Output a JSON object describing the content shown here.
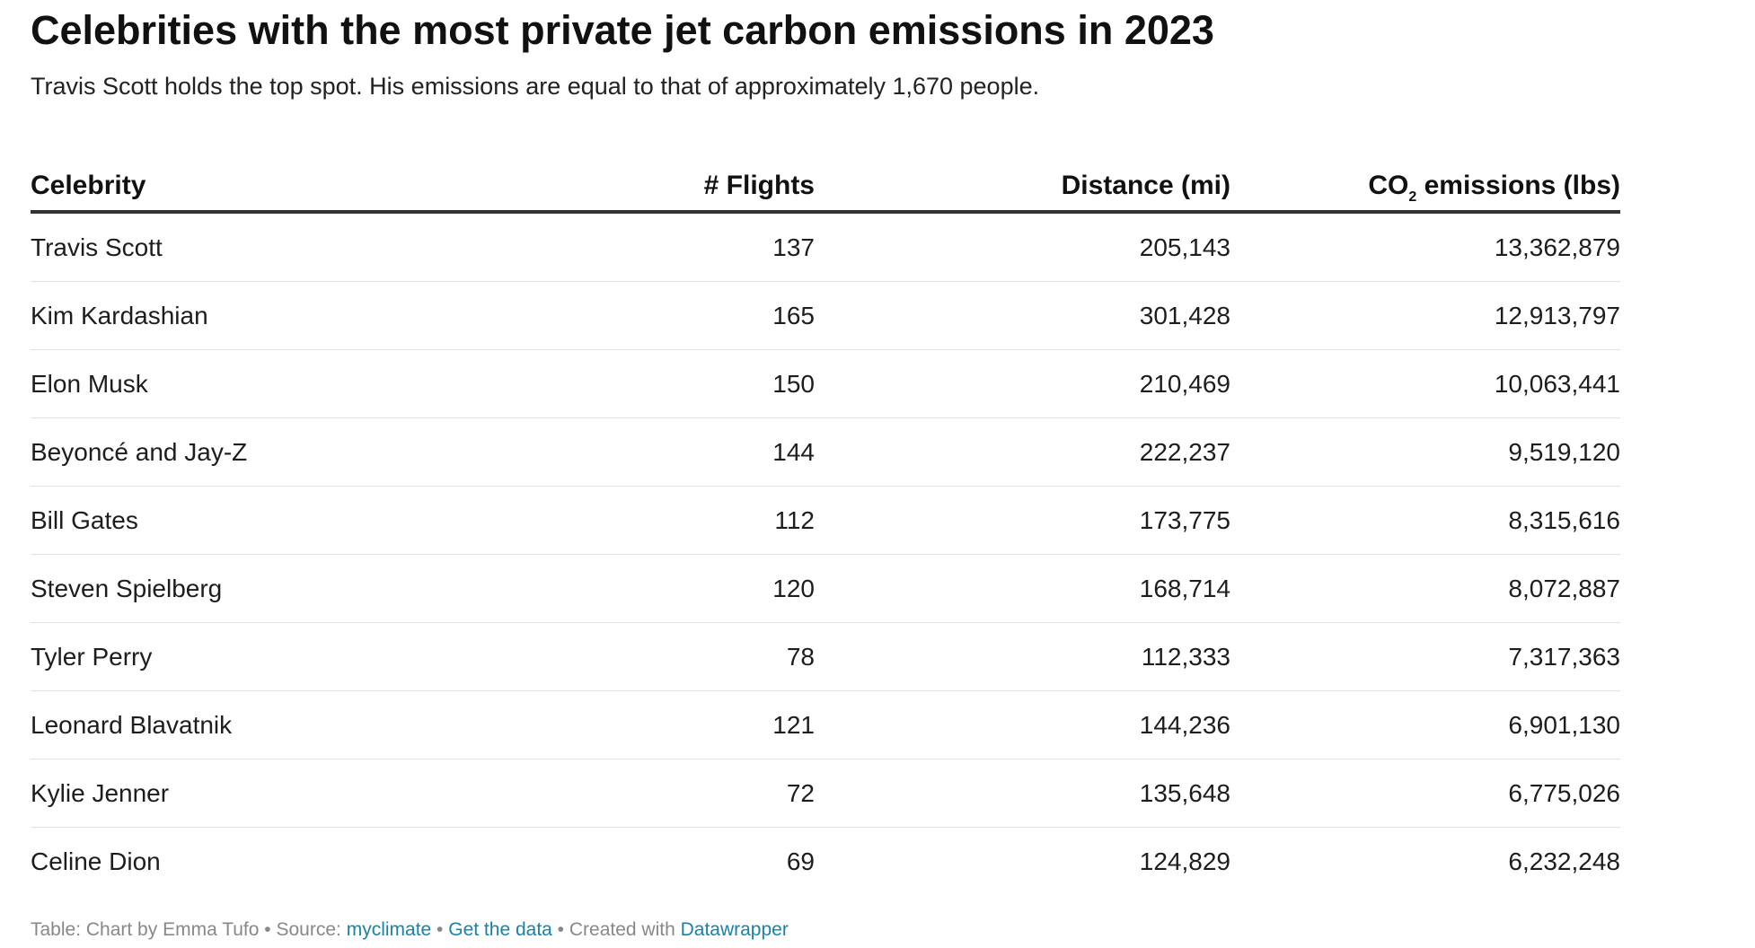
{
  "chart_data": {
    "type": "table",
    "title": "Celebrities with the most private jet carbon emissions in 2023",
    "subtitle": "Travis Scott holds the top spot. His emissions are equal to that of approximately 1,670 people.",
    "columns": [
      "Celebrity",
      "# Flights",
      "Distance (mi)",
      "CO2 emissions (lbs)"
    ],
    "header": {
      "celebrity": "Celebrity",
      "flights": "# Flights",
      "distance": "Distance (mi)",
      "emissions_prefix": "CO",
      "emissions_sub": "2",
      "emissions_suffix": " emissions (lbs)"
    },
    "rows": [
      {
        "celebrity": "Travis Scott",
        "flights": "137",
        "distance": "205,143",
        "emissions": "13,362,879"
      },
      {
        "celebrity": "Kim Kardashian",
        "flights": "165",
        "distance": "301,428",
        "emissions": "12,913,797"
      },
      {
        "celebrity": "Elon Musk",
        "flights": "150",
        "distance": "210,469",
        "emissions": "10,063,441"
      },
      {
        "celebrity": "Beyoncé and Jay-Z",
        "flights": "144",
        "distance": "222,237",
        "emissions": "9,519,120"
      },
      {
        "celebrity": "Bill Gates",
        "flights": "112",
        "distance": "173,775",
        "emissions": "8,315,616"
      },
      {
        "celebrity": "Steven Spielberg",
        "flights": "120",
        "distance": "168,714",
        "emissions": "8,072,887"
      },
      {
        "celebrity": "Tyler Perry",
        "flights": "78",
        "distance": "112,333",
        "emissions": "7,317,363"
      },
      {
        "celebrity": "Leonard Blavatnik",
        "flights": "121",
        "distance": "144,236",
        "emissions": "6,901,130"
      },
      {
        "celebrity": "Kylie Jenner",
        "flights": "72",
        "distance": "135,648",
        "emissions": "6,775,026"
      },
      {
        "celebrity": "Celine Dion",
        "flights": "69",
        "distance": "124,829",
        "emissions": "6,232,248"
      }
    ]
  },
  "footer": {
    "table_credit": "Table: Chart by Emma Tufo",
    "separator": " • ",
    "source_label": "Source: ",
    "source_link": "myclimate",
    "get_data_link": "Get the data",
    "created_with": "Created with ",
    "datawrapper_link": "Datawrapper"
  },
  "colors": {
    "text": "#1d1d1d",
    "header_rule": "#333333",
    "row_rule": "#e1e1e1",
    "footer_text": "#888888",
    "link": "#1d81a2"
  }
}
